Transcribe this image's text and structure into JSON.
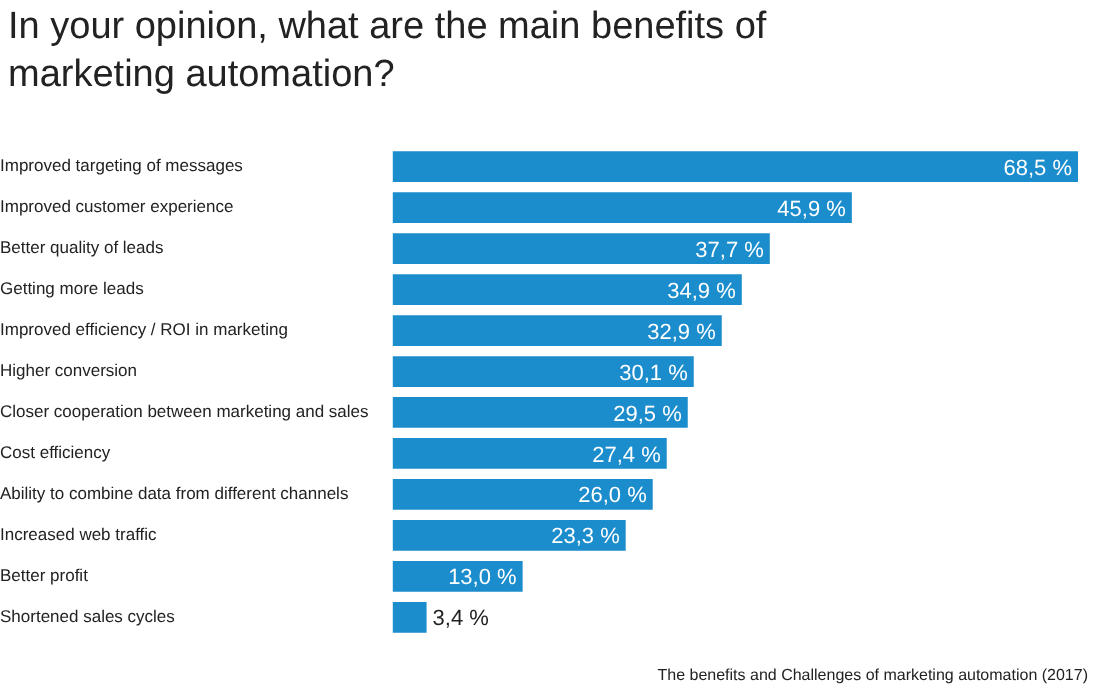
{
  "chart_data": {
    "type": "bar",
    "orientation": "horizontal",
    "title": "In your opinion, what are the main benefits of marketing automation?",
    "categories": [
      "Improved targeting of messages",
      "Improved customer experience",
      "Better quality of leads",
      "Getting more leads",
      "Improved efficiency / ROI in marketing",
      "Higher conversion",
      "Closer cooperation between marketing and sales",
      "Cost efficiency",
      "Ability to combine data from different channels",
      "Increased web traffic",
      "Better profit",
      "Shortened sales cycles"
    ],
    "values": [
      68.5,
      45.9,
      37.7,
      34.9,
      32.9,
      30.1,
      29.5,
      27.4,
      26.0,
      23.3,
      13.0,
      3.4
    ],
    "value_labels": [
      "68,5 %",
      "45,9 %",
      "37,7 %",
      "34,9 %",
      "32,9 %",
      "30,1 %",
      "29,5 %",
      "27,4 %",
      "26,0 %",
      "23,3 %",
      "13,0 %",
      "3,4 %"
    ],
    "color": "#1b8ccc",
    "annotations": [
      "The benefits and Challenges of marketing automation (2017)"
    ],
    "grid": false,
    "legend": false
  }
}
